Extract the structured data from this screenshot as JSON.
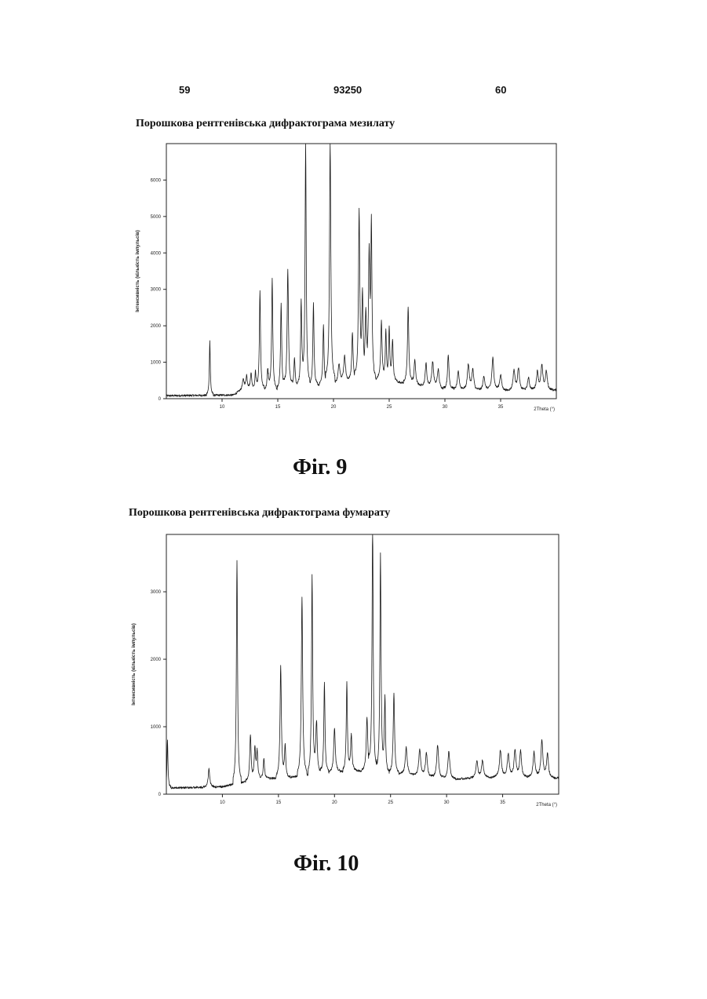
{
  "page_header": {
    "left": "59",
    "center": "93250",
    "right": "60"
  },
  "figures": [
    {
      "heading": "Порошкова рентгенівська дифрактограма мезилату",
      "caption": "Фіг. 9",
      "chart_data": {
        "type": "line",
        "title": "Порошкова рентгенівська дифрактограма мезилату",
        "xlabel": "2Theta (°)",
        "ylabel": "Інтенсивність (кількість імпульсів)",
        "xlim": [
          5,
          40
        ],
        "ylim": [
          0,
          7000
        ],
        "xticks": [
          10,
          15,
          20,
          25,
          30,
          35
        ],
        "yticks": [
          0,
          1000,
          2000,
          3000,
          4000,
          5000,
          6000
        ],
        "grid": false,
        "baseline": [
          [
            5,
            80
          ],
          [
            11,
            100
          ],
          [
            12,
            280
          ],
          [
            14,
            240
          ],
          [
            18,
            360
          ],
          [
            21,
            460
          ],
          [
            24,
            550
          ],
          [
            27,
            400
          ],
          [
            30,
            250
          ],
          [
            35,
            220
          ],
          [
            40,
            240
          ]
        ],
        "peaks": [
          [
            8.9,
            1500,
            0.05
          ],
          [
            11.9,
            250,
            0.1
          ],
          [
            12.2,
            350,
            0.07
          ],
          [
            12.6,
            450,
            0.07
          ],
          [
            13.0,
            500,
            0.06
          ],
          [
            13.4,
            2700,
            0.06
          ],
          [
            14.1,
            600,
            0.07
          ],
          [
            14.5,
            3050,
            0.06
          ],
          [
            15.3,
            2350,
            0.06
          ],
          [
            15.9,
            3250,
            0.07
          ],
          [
            16.5,
            800,
            0.07
          ],
          [
            17.1,
            2400,
            0.06
          ],
          [
            17.5,
            6650,
            0.06
          ],
          [
            18.2,
            2250,
            0.06
          ],
          [
            19.1,
            1650,
            0.06
          ],
          [
            19.7,
            6600,
            0.07
          ],
          [
            20.5,
            500,
            0.1
          ],
          [
            21.0,
            700,
            0.1
          ],
          [
            21.7,
            1350,
            0.07
          ],
          [
            22.3,
            4600,
            0.07
          ],
          [
            22.6,
            2200,
            0.07
          ],
          [
            22.9,
            1700,
            0.07
          ],
          [
            23.2,
            3300,
            0.07
          ],
          [
            23.4,
            4150,
            0.06
          ],
          [
            24.3,
            1600,
            0.07
          ],
          [
            24.7,
            1300,
            0.06
          ],
          [
            25.0,
            1400,
            0.06
          ],
          [
            25.3,
            1100,
            0.07
          ],
          [
            26.7,
            2100,
            0.07
          ],
          [
            27.3,
            700,
            0.08
          ],
          [
            28.3,
            650,
            0.08
          ],
          [
            28.9,
            700,
            0.1
          ],
          [
            29.4,
            500,
            0.1
          ],
          [
            30.3,
            950,
            0.08
          ],
          [
            31.2,
            500,
            0.1
          ],
          [
            32.1,
            700,
            0.1
          ],
          [
            32.5,
            550,
            0.1
          ],
          [
            33.5,
            400,
            0.1
          ],
          [
            34.3,
            900,
            0.1
          ],
          [
            35.0,
            450,
            0.1
          ],
          [
            36.2,
            550,
            0.1
          ],
          [
            36.6,
            600,
            0.1
          ],
          [
            37.5,
            350,
            0.1
          ],
          [
            38.3,
            500,
            0.1
          ],
          [
            38.7,
            650,
            0.1
          ],
          [
            39.1,
            500,
            0.1
          ]
        ]
      }
    },
    {
      "heading": "Порошкова рентгенівська дифрактограма фумарату",
      "caption": "Фіг. 10",
      "chart_data": {
        "type": "line",
        "title": "Порошкова рентгенівська дифрактограма фумарату",
        "xlabel": "2Theta (°)",
        "ylabel": "Інтенсивність (кількість імпульсів)",
        "xlim": [
          5,
          40
        ],
        "ylim": [
          0,
          3850
        ],
        "xticks": [
          10,
          15,
          20,
          25,
          30,
          35
        ],
        "yticks": [
          0,
          1000,
          2000,
          3000
        ],
        "grid": false,
        "baseline": [
          [
            5,
            90
          ],
          [
            10,
            110
          ],
          [
            11,
            150
          ],
          [
            13,
            220
          ],
          [
            16,
            250
          ],
          [
            19,
            320
          ],
          [
            22,
            350
          ],
          [
            26,
            300
          ],
          [
            30,
            220
          ],
          [
            35,
            260
          ],
          [
            40,
            240
          ]
        ],
        "peaks": [
          [
            5.1,
            700,
            0.05
          ],
          [
            8.8,
            270,
            0.08
          ],
          [
            11.3,
            3300,
            0.06
          ],
          [
            12.5,
            680,
            0.07
          ],
          [
            12.9,
            450,
            0.07
          ],
          [
            13.1,
            400,
            0.07
          ],
          [
            13.7,
            300,
            0.07
          ],
          [
            15.2,
            1650,
            0.07
          ],
          [
            15.6,
            450,
            0.07
          ],
          [
            17.1,
            2650,
            0.07
          ],
          [
            18.0,
            2950,
            0.06
          ],
          [
            18.4,
            800,
            0.07
          ],
          [
            19.1,
            1350,
            0.06
          ],
          [
            20.0,
            650,
            0.08
          ],
          [
            21.1,
            1300,
            0.06
          ],
          [
            21.5,
            550,
            0.07
          ],
          [
            22.9,
            800,
            0.08
          ],
          [
            23.4,
            3700,
            0.06
          ],
          [
            24.1,
            3250,
            0.06
          ],
          [
            24.5,
            1150,
            0.06
          ],
          [
            25.3,
            1200,
            0.07
          ],
          [
            26.4,
            400,
            0.1
          ],
          [
            27.6,
            400,
            0.1
          ],
          [
            28.2,
            350,
            0.1
          ],
          [
            29.2,
            500,
            0.1
          ],
          [
            30.2,
            420,
            0.1
          ],
          [
            32.7,
            250,
            0.1
          ],
          [
            33.2,
            250,
            0.1
          ],
          [
            34.8,
            400,
            0.1
          ],
          [
            35.5,
            350,
            0.1
          ],
          [
            36.1,
            400,
            0.1
          ],
          [
            36.6,
            380,
            0.1
          ],
          [
            37.8,
            380,
            0.1
          ],
          [
            38.5,
            550,
            0.1
          ],
          [
            39.0,
            350,
            0.1
          ]
        ]
      }
    }
  ]
}
